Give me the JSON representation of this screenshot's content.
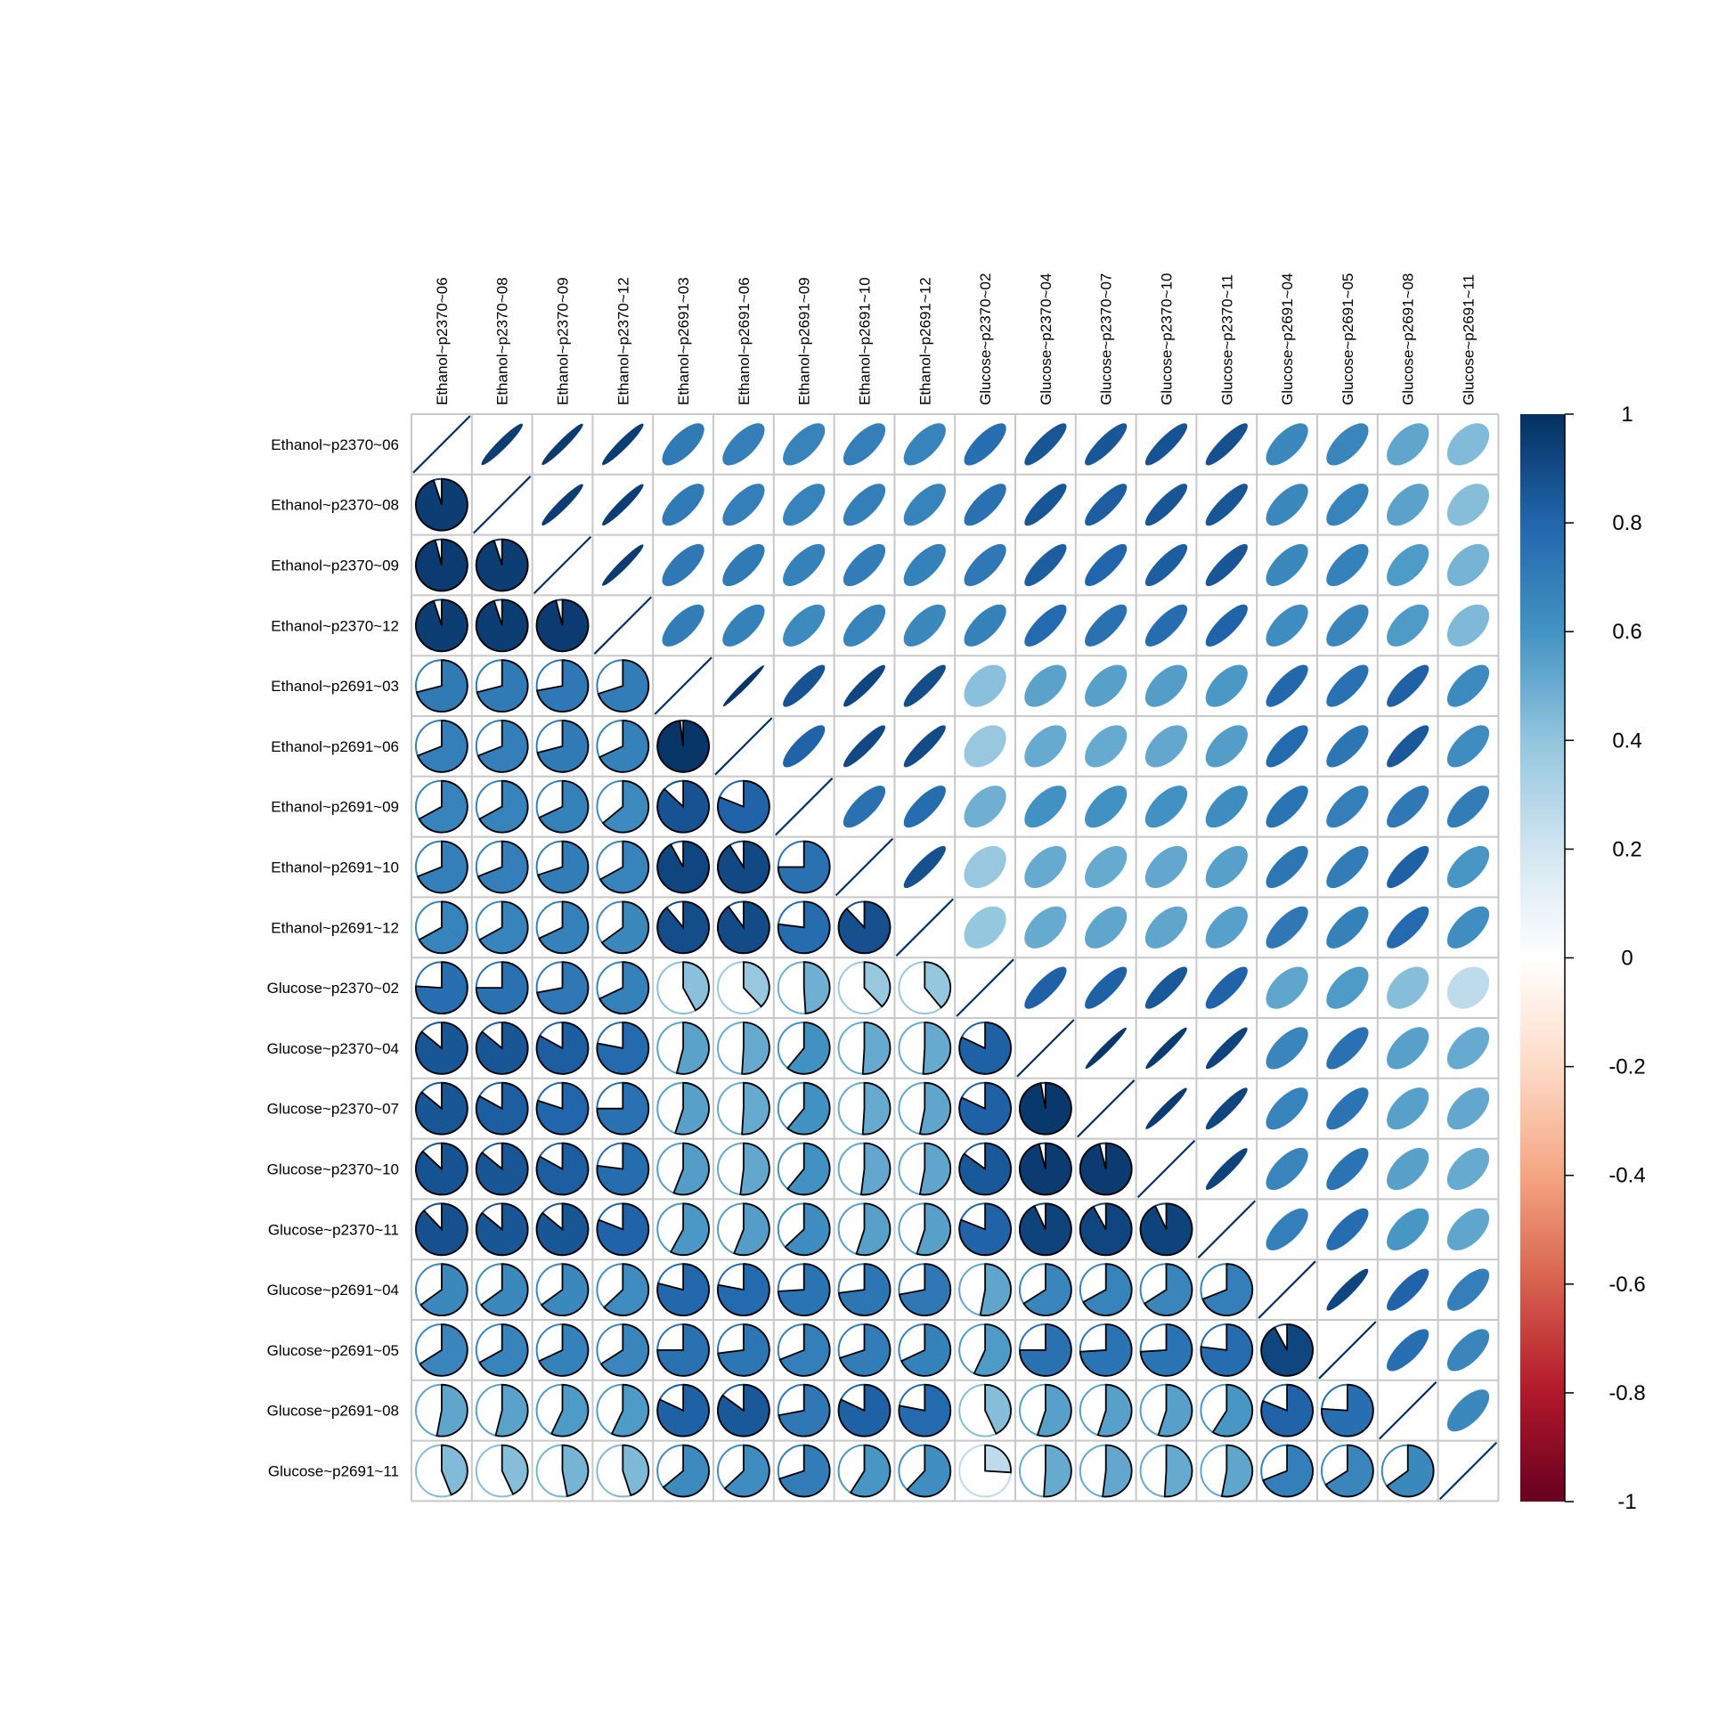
{
  "chart_data": {
    "type": "heatmap",
    "upper_method": "ellipse",
    "lower_method": "pie",
    "labels": [
      "Ethanol~p2370~06",
      "Ethanol~p2370~08",
      "Ethanol~p2370~09",
      "Ethanol~p2370~12",
      "Ethanol~p2691~03",
      "Ethanol~p2691~06",
      "Ethanol~p2691~09",
      "Ethanol~p2691~10",
      "Ethanol~p2691~12",
      "Glucose~p2370~02",
      "Glucose~p2370~04",
      "Glucose~p2370~07",
      "Glucose~p2370~10",
      "Glucose~p2370~11",
      "Glucose~p2691~04",
      "Glucose~p2691~05",
      "Glucose~p2691~08",
      "Glucose~p2691~11"
    ],
    "matrix": [
      [
        1.0,
        0.95,
        0.96,
        0.95,
        0.71,
        0.69,
        0.67,
        0.69,
        0.67,
        0.76,
        0.86,
        0.86,
        0.87,
        0.88,
        0.65,
        0.66,
        0.53,
        0.44
      ],
      [
        0.95,
        1.0,
        0.95,
        0.95,
        0.71,
        0.69,
        0.67,
        0.69,
        0.67,
        0.75,
        0.86,
        0.83,
        0.86,
        0.86,
        0.65,
        0.67,
        0.54,
        0.43
      ],
      [
        0.96,
        0.95,
        1.0,
        0.96,
        0.72,
        0.71,
        0.68,
        0.7,
        0.68,
        0.72,
        0.83,
        0.8,
        0.83,
        0.86,
        0.65,
        0.68,
        0.57,
        0.47
      ],
      [
        0.95,
        0.95,
        0.96,
        1.0,
        0.7,
        0.68,
        0.64,
        0.67,
        0.65,
        0.68,
        0.78,
        0.75,
        0.77,
        0.81,
        0.63,
        0.66,
        0.57,
        0.45
      ],
      [
        0.71,
        0.71,
        0.72,
        0.7,
        1.0,
        0.98,
        0.87,
        0.92,
        0.89,
        0.42,
        0.54,
        0.55,
        0.56,
        0.58,
        0.79,
        0.75,
        0.82,
        0.64
      ],
      [
        0.69,
        0.69,
        0.71,
        0.68,
        0.98,
        1.0,
        0.81,
        0.91,
        0.9,
        0.38,
        0.51,
        0.51,
        0.52,
        0.56,
        0.78,
        0.73,
        0.85,
        0.63
      ],
      [
        0.67,
        0.67,
        0.68,
        0.64,
        0.87,
        0.81,
        1.0,
        0.75,
        0.77,
        0.49,
        0.61,
        0.61,
        0.61,
        0.63,
        0.74,
        0.69,
        0.72,
        0.7
      ],
      [
        0.69,
        0.69,
        0.7,
        0.67,
        0.92,
        0.91,
        0.75,
        1.0,
        0.88,
        0.38,
        0.51,
        0.51,
        0.52,
        0.55,
        0.73,
        0.7,
        0.82,
        0.59
      ],
      [
        0.67,
        0.67,
        0.68,
        0.65,
        0.89,
        0.9,
        0.77,
        0.88,
        1.0,
        0.39,
        0.51,
        0.53,
        0.53,
        0.55,
        0.72,
        0.68,
        0.78,
        0.62
      ],
      [
        0.76,
        0.75,
        0.72,
        0.68,
        0.42,
        0.38,
        0.49,
        0.38,
        0.39,
        1.0,
        0.82,
        0.82,
        0.85,
        0.81,
        0.53,
        0.57,
        0.43,
        0.26
      ],
      [
        0.86,
        0.86,
        0.83,
        0.78,
        0.54,
        0.51,
        0.61,
        0.51,
        0.51,
        0.82,
        1.0,
        0.97,
        0.96,
        0.93,
        0.66,
        0.75,
        0.55,
        0.51
      ],
      [
        0.86,
        0.83,
        0.8,
        0.75,
        0.55,
        0.51,
        0.61,
        0.51,
        0.53,
        0.82,
        0.97,
        1.0,
        0.96,
        0.92,
        0.67,
        0.74,
        0.55,
        0.52
      ],
      [
        0.87,
        0.86,
        0.83,
        0.77,
        0.56,
        0.52,
        0.61,
        0.52,
        0.53,
        0.85,
        0.96,
        0.96,
        1.0,
        0.93,
        0.66,
        0.74,
        0.55,
        0.51
      ],
      [
        0.88,
        0.86,
        0.86,
        0.81,
        0.58,
        0.56,
        0.63,
        0.55,
        0.55,
        0.81,
        0.93,
        0.92,
        0.93,
        1.0,
        0.69,
        0.77,
        0.59,
        0.53
      ],
      [
        0.65,
        0.65,
        0.65,
        0.63,
        0.79,
        0.78,
        0.74,
        0.73,
        0.72,
        0.53,
        0.66,
        0.67,
        0.66,
        0.69,
        1.0,
        0.92,
        0.81,
        0.69
      ],
      [
        0.66,
        0.67,
        0.68,
        0.66,
        0.75,
        0.73,
        0.69,
        0.7,
        0.68,
        0.57,
        0.75,
        0.74,
        0.74,
        0.77,
        0.92,
        1.0,
        0.76,
        0.66
      ],
      [
        0.53,
        0.54,
        0.57,
        0.57,
        0.82,
        0.85,
        0.72,
        0.82,
        0.78,
        0.43,
        0.55,
        0.55,
        0.55,
        0.59,
        0.81,
        0.76,
        1.0,
        0.65
      ],
      [
        0.44,
        0.43,
        0.47,
        0.45,
        0.64,
        0.63,
        0.7,
        0.59,
        0.62,
        0.26,
        0.51,
        0.52,
        0.51,
        0.53,
        0.69,
        0.66,
        0.65,
        1.0
      ]
    ],
    "colorbar": {
      "range": [
        -1,
        1
      ],
      "ticks": [
        "1",
        "0.8",
        "0.6",
        "0.4",
        "0.2",
        "0",
        "-0.2",
        "-0.4",
        "-0.6",
        "-0.8",
        "-1"
      ],
      "colors": [
        "#67001F",
        "#B2182B",
        "#D6604D",
        "#F4A582",
        "#FDDBC7",
        "#FFFFFF",
        "#D1E5F0",
        "#92C5DE",
        "#4393C3",
        "#2166AC",
        "#053061"
      ]
    }
  }
}
